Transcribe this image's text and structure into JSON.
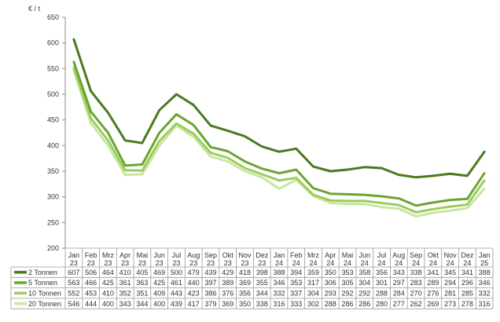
{
  "chart_data": {
    "type": "line",
    "ylabel": "€ / t",
    "ylim": [
      200,
      650
    ],
    "yticks": [
      200,
      250,
      300,
      350,
      400,
      450,
      500,
      550,
      600,
      650
    ],
    "grid": false,
    "legend": "table-below",
    "categories": [
      [
        "Jan",
        "23"
      ],
      [
        "Feb",
        "23"
      ],
      [
        "Mrz",
        "23"
      ],
      [
        "Apr",
        "23"
      ],
      [
        "Mai",
        "23"
      ],
      [
        "Jun",
        "23"
      ],
      [
        "Jul",
        "23"
      ],
      [
        "Aug",
        "23"
      ],
      [
        "Sep",
        "23"
      ],
      [
        "Okt",
        "23"
      ],
      [
        "Nov",
        "23"
      ],
      [
        "Dez",
        "23"
      ],
      [
        "Jan",
        "24"
      ],
      [
        "Feb",
        "24"
      ],
      [
        "Mrz",
        "24"
      ],
      [
        "Apr",
        "24"
      ],
      [
        "Mai",
        "24"
      ],
      [
        "Jun",
        "24"
      ],
      [
        "Jul",
        "24"
      ],
      [
        "Aug",
        "24"
      ],
      [
        "Sep",
        "24"
      ],
      [
        "Okt",
        "24"
      ],
      [
        "Nov",
        "24"
      ],
      [
        "Dez",
        "24"
      ],
      [
        "Jan",
        "25"
      ]
    ],
    "series": [
      {
        "name": "2 Tonnen",
        "color": "#4a7a1e",
        "values": [
          607,
          506,
          464,
          410,
          405,
          469,
          500,
          479,
          439,
          429,
          418,
          398,
          388,
          394,
          359,
          350,
          353,
          358,
          356,
          343,
          338,
          341,
          345,
          341,
          388
        ]
      },
      {
        "name": "5 Tonnen",
        "color": "#6aa532",
        "values": [
          563,
          466,
          425,
          361,
          363,
          425,
          461,
          440,
          397,
          389,
          369,
          355,
          346,
          353,
          317,
          306,
          305,
          304,
          301,
          297,
          283,
          289,
          294,
          296,
          346
        ]
      },
      {
        "name": "10 Tonnen",
        "color": "#9ccc5a",
        "values": [
          552,
          453,
          410,
          352,
          351,
          409,
          443,
          423,
          386,
          376,
          356,
          344,
          332,
          337,
          304,
          293,
          292,
          292,
          288,
          284,
          270,
          276,
          281,
          285,
          332
        ]
      },
      {
        "name": "20 Tonnen",
        "color": "#c8e6a0",
        "values": [
          546,
          444,
          400,
          343,
          344,
          400,
          439,
          417,
          379,
          369,
          350,
          338,
          316,
          333,
          302,
          288,
          286,
          286,
          280,
          277,
          262,
          269,
          273,
          278,
          316
        ]
      }
    ]
  }
}
